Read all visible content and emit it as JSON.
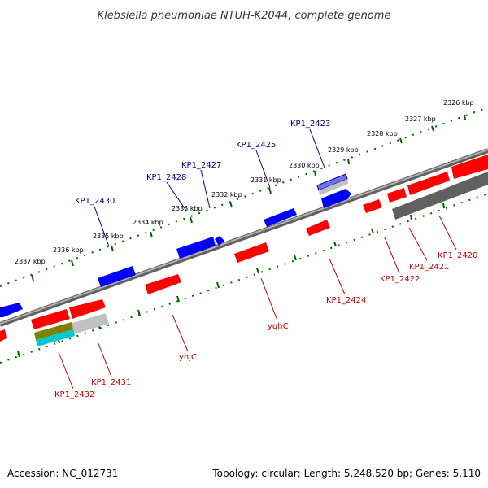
{
  "title": "Klebsiella pneumoniae NTUH-K2044, complete genome",
  "footer": {
    "accession": "Accession: NC_012731",
    "stats": "Topology: circular; Length: 5,248,520 bp; Genes: 5,110"
  },
  "colors": {
    "forward_gene": "#0000ff",
    "reverse_gene": "#ff0000",
    "forward_label": "#00008b",
    "reverse_label": "#cc0000",
    "backbone": "#808080",
    "ticks": "#006400"
  },
  "ticks": [
    "2326 kbp",
    "2327 kbp",
    "2328 kbp",
    "2329 kbp",
    "2330 kbp",
    "2331 kbp",
    "2332 kbp",
    "2333 kbp",
    "2334 kbp",
    "2335 kbp",
    "2336 kbp",
    "2337 kbp"
  ],
  "forward_labels": [
    "KP1_2423",
    "KP1_2425",
    "KP1_2427",
    "KP1_2428",
    "KP1_2430"
  ],
  "reverse_labels": [
    "KP1_2420",
    "KP1_2421",
    "KP1_2422",
    "KP1_2424",
    "yqhC",
    "yhjC",
    "KP1_2431",
    "KP1_2432"
  ]
}
